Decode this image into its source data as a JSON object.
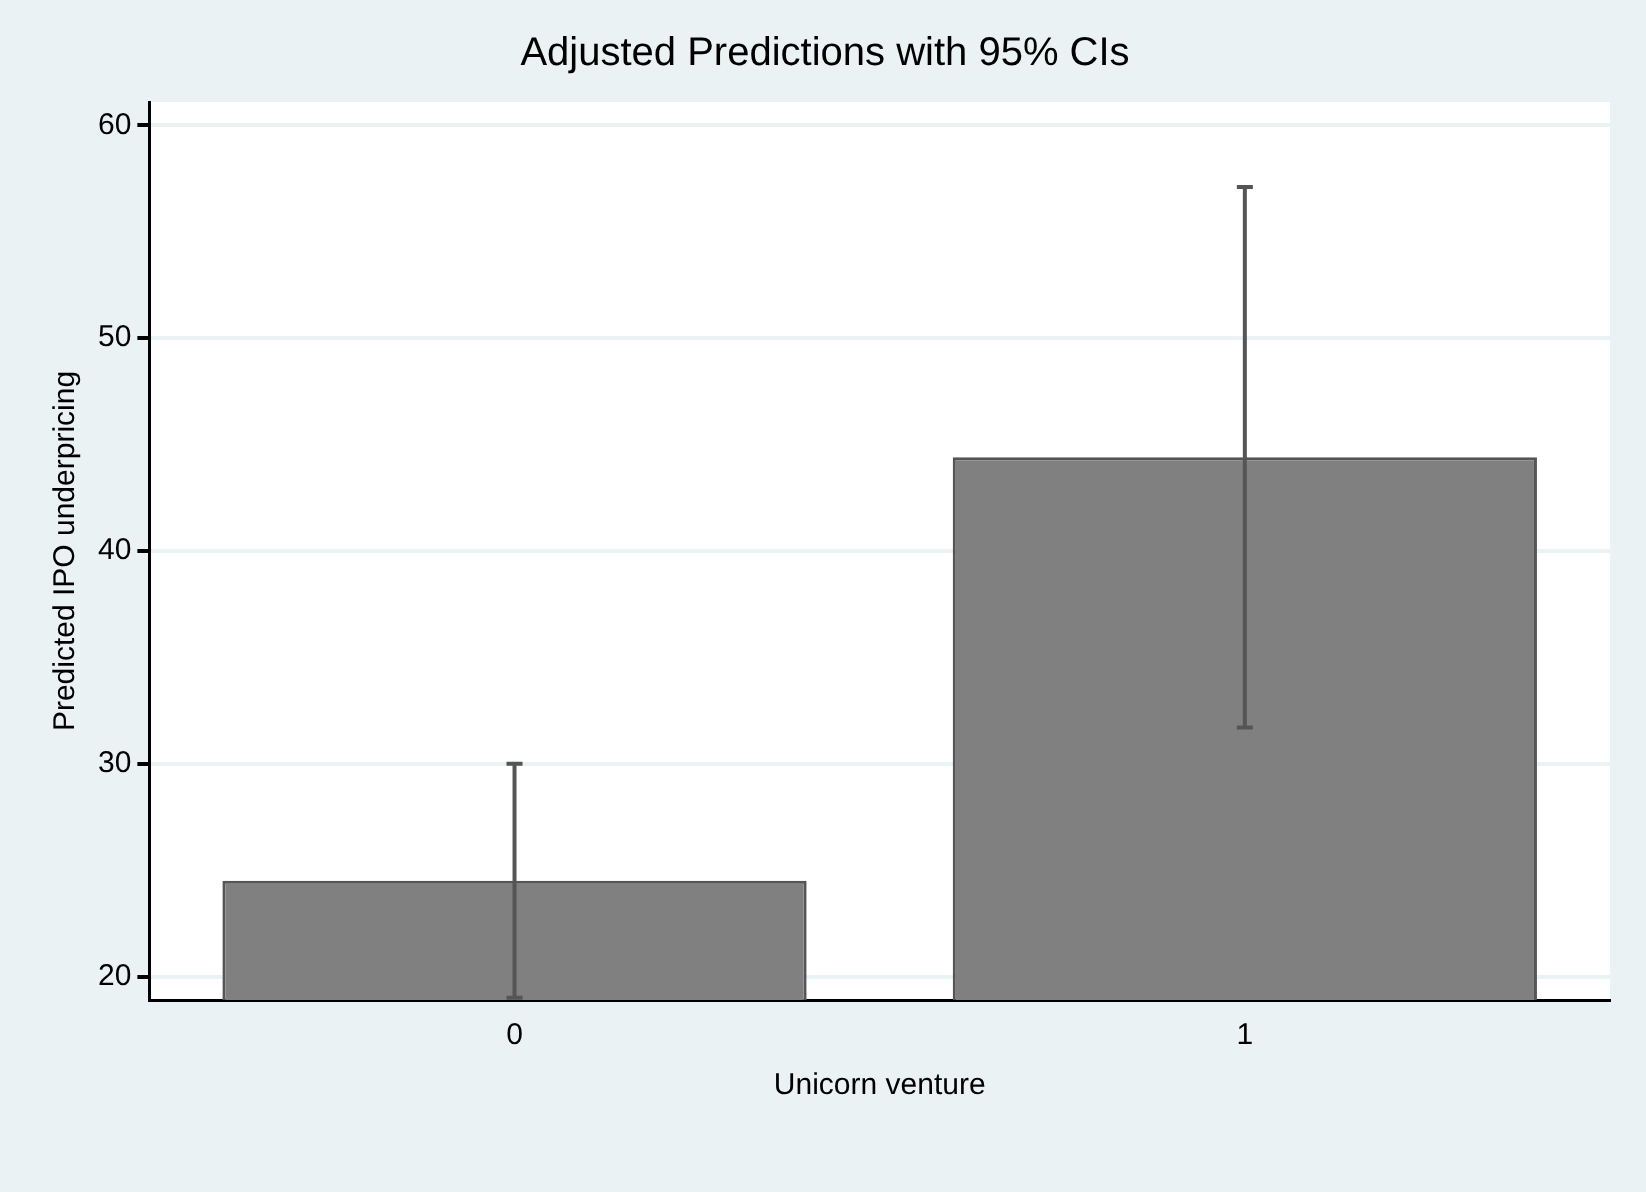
{
  "chart_data": {
    "type": "bar",
    "title": "Adjusted Predictions with 95% CIs",
    "xlabel": "Unicorn venture",
    "ylabel": "Predicted IPO underpricing",
    "categories": [
      "0",
      "1"
    ],
    "values": [
      24.5,
      44.4
    ],
    "errors": [
      [
        19.0,
        30.0
      ],
      [
        31.7,
        57.1
      ]
    ],
    "color": "#808080",
    "ylim": [
      18.9,
      61.1
    ],
    "yticks": [
      20,
      30,
      40,
      50,
      60
    ],
    "grid": "y",
    "legend": false
  }
}
